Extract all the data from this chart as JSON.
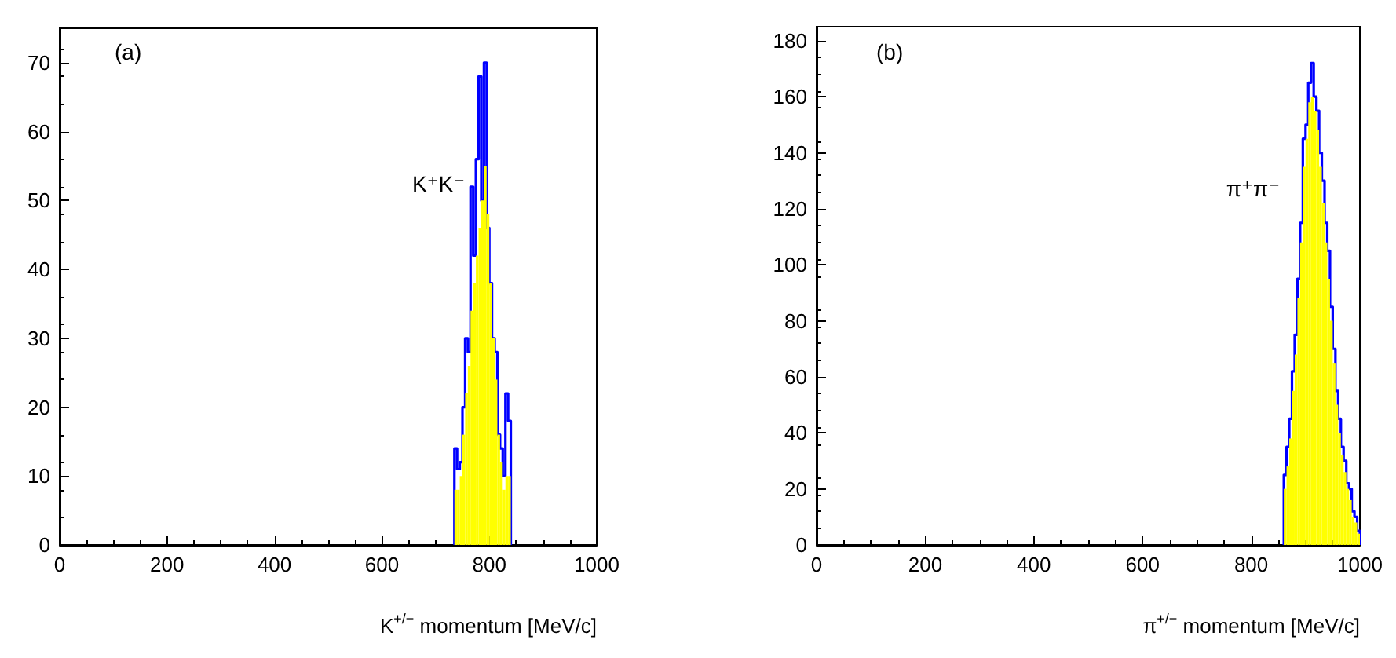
{
  "chart_data": [
    {
      "type": "histogram",
      "xlabel": "K$^{+/−}$ momentum [MeV/c]",
      "annotations": [
        "(a)",
        "K⁺K⁻"
      ],
      "bins": [
        735,
        740,
        745,
        750,
        755,
        760,
        765,
        770,
        775,
        780,
        785,
        790,
        795,
        800,
        805,
        810,
        815,
        820,
        825,
        830,
        835,
        840
      ],
      "series": [
        {
          "color": "#0000ff",
          "values": [
            14,
            11,
            12,
            20,
            30,
            28,
            52,
            42,
            56,
            68,
            50,
            70,
            46,
            38,
            30,
            28,
            16,
            14,
            10,
            22,
            18
          ]
        },
        {
          "color": "#ffff00",
          "values": [
            8,
            8,
            10,
            16,
            22,
            26,
            34,
            38,
            42,
            46,
            50,
            55,
            48,
            38,
            30,
            24,
            16,
            12,
            8,
            10,
            10
          ]
        }
      ],
      "xlim": [
        0,
        1000
      ],
      "xticks": [
        0,
        200,
        400,
        600,
        800,
        1000
      ],
      "ylim": [
        0,
        75
      ],
      "yticks": [
        0,
        10,
        20,
        30,
        40,
        50,
        60,
        70
      ],
      "grid": false
    },
    {
      "type": "histogram",
      "xlabel": "π$^{+/−}$ momentum [MeV/c]",
      "annotations": [
        "(b)",
        "π⁺π⁻"
      ],
      "bins": [
        860,
        865,
        870,
        875,
        880,
        885,
        890,
        895,
        900,
        905,
        910,
        915,
        920,
        925,
        930,
        935,
        940,
        945,
        950,
        955,
        960,
        965,
        970,
        975,
        980,
        985,
        990,
        995,
        1000
      ],
      "series": [
        {
          "color": "#0000ff",
          "values": [
            25,
            35,
            45,
            62,
            75,
            95,
            115,
            145,
            150,
            165,
            172,
            160,
            155,
            140,
            130,
            115,
            105,
            85,
            70,
            55,
            45,
            35,
            30,
            22,
            20,
            12,
            10,
            5
          ]
        },
        {
          "color": "#ffff00",
          "values": [
            20,
            28,
            38,
            55,
            68,
            88,
            108,
            135,
            145,
            158,
            160,
            155,
            148,
            135,
            122,
            108,
            95,
            80,
            65,
            50,
            40,
            32,
            26,
            20,
            16,
            10,
            8,
            4
          ]
        }
      ],
      "xlim": [
        0,
        1000
      ],
      "xticks": [
        0,
        200,
        400,
        600,
        800,
        1000
      ],
      "ylim": [
        0,
        185
      ],
      "yticks": [
        0,
        20,
        40,
        60,
        80,
        100,
        120,
        140,
        160,
        180
      ],
      "grid": false
    }
  ]
}
